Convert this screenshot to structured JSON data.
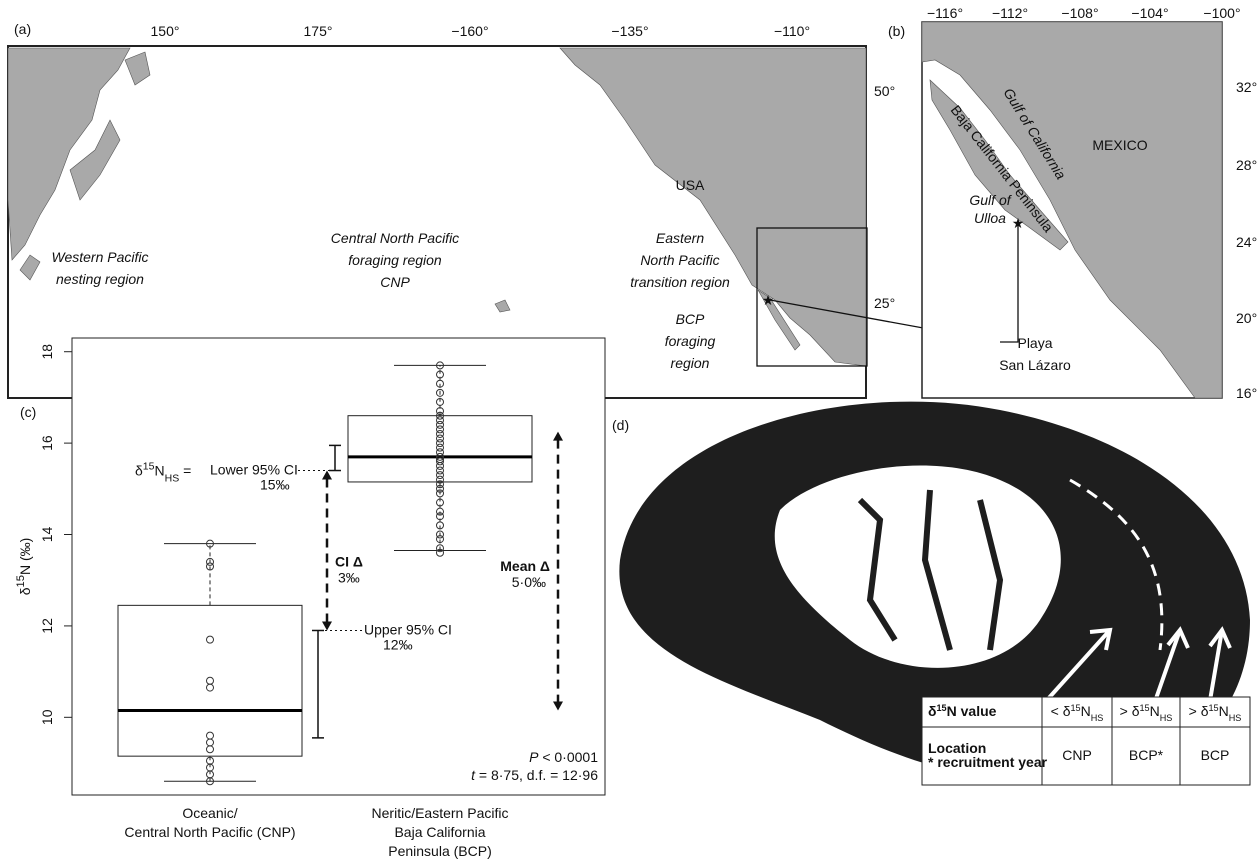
{
  "panel_a": {
    "label": "(a)",
    "lon_ticks": [
      "150°",
      "175°",
      "−160°",
      "−135°",
      "−110°"
    ],
    "lat_ticks": [
      "50°",
      "25°"
    ],
    "regions": [
      [
        "Western Pacific",
        "nesting region"
      ],
      [
        "Central North Pacific",
        "foraging region",
        "CNP"
      ],
      [
        "Eastern",
        "North Pacific",
        "transition region"
      ],
      [
        "BCP",
        "foraging",
        "region"
      ]
    ],
    "country": "USA",
    "site": [
      "Playa",
      "San Lázaro"
    ]
  },
  "panel_b": {
    "label": "(b)",
    "lon_ticks": [
      "−116°",
      "−112°",
      "−108°",
      "−104°",
      "−100°"
    ],
    "lat_ticks": [
      "32°",
      "28°",
      "24°",
      "20°",
      "16°"
    ],
    "country": "MEXICO",
    "peninsula": "Baja California Peninsula",
    "gulf": "Gulf of California",
    "lagoon": [
      "Gulf of",
      "Ulloa"
    ]
  },
  "panel_c": {
    "label": "(c)",
    "y_label": [
      "δ",
      {
        "sup": "15"
      },
      "N (‰)"
    ],
    "ylim": [
      8.3,
      18.3
    ],
    "yticks": [
      10,
      12,
      14,
      16,
      18
    ],
    "groups": [
      {
        "name": [
          "Oceanic/",
          "Central North Pacific (CNP)"
        ],
        "whisker_low": 8.6,
        "q1": 9.15,
        "median": 10.15,
        "q3": 12.45,
        "whisker_high": 13.8,
        "ci": [
          9.55,
          11.9
        ],
        "points": [
          13.8,
          13.4,
          13.3,
          11.7,
          10.8,
          10.65,
          9.6,
          9.45,
          9.3,
          9.05,
          8.9,
          8.75,
          8.6
        ]
      },
      {
        "name": [
          "Neritic/Eastern Pacific",
          "Baja California",
          "Peninsula (BCP)"
        ],
        "whisker_low": 13.65,
        "q1": 15.15,
        "median": 15.7,
        "q3": 16.6,
        "whisker_high": 17.7,
        "ci": [
          15.4,
          15.95
        ],
        "points": [
          13.6,
          13.7,
          13.9,
          14.0,
          14.2,
          14.4,
          14.5,
          14.7,
          14.9,
          15.0,
          15.1,
          15.2,
          15.3,
          15.4,
          15.5,
          15.6,
          15.65,
          15.7,
          15.8,
          15.9,
          16.0,
          16.1,
          16.2,
          16.3,
          16.4,
          16.5,
          16.6,
          16.7,
          16.9,
          17.1,
          17.3,
          17.5,
          17.7
        ]
      }
    ],
    "lower_ci": {
      "lhs": [
        "δ",
        {
          "sup": "15"
        },
        "N",
        {
          "sub": "HS"
        },
        " ="
      ],
      "text": "Lower 95% CI",
      "value": "15‰"
    },
    "upper_ci": {
      "text": "Upper 95% CI",
      "value": "12‰"
    },
    "ci_delta": [
      "CI Δ",
      "3‰"
    ],
    "mean_delta": [
      "Mean Δ",
      "5·0‰"
    ],
    "stats": [
      [
        {
          "i": "P"
        },
        " < 0·0001"
      ],
      [
        {
          "i": "t"
        },
        " = 8·75, d.f. = 12·96"
      ]
    ]
  },
  "panel_d": {
    "label": "(d)",
    "table": [
      [
        [
          [
            "δ",
            {
              "sup": "15"
            },
            "N value"
          ]
        ],
        [
          [
            "< δ",
            {
              "sup": "15"
            },
            "N",
            {
              "sub": "HS"
            }
          ]
        ],
        [
          [
            "> δ",
            {
              "sup": "15"
            },
            "N",
            {
              "sub": "HS"
            }
          ]
        ],
        [
          [
            "> δ",
            {
              "sup": "15"
            },
            "N",
            {
              "sub": "HS"
            }
          ]
        ]
      ],
      [
        [
          [
            "Location"
          ],
          [
            "* recruitment year"
          ]
        ],
        [
          [
            "CNP"
          ]
        ],
        [
          [
            "BCP*"
          ]
        ],
        [
          [
            "BCP"
          ]
        ]
      ]
    ]
  }
}
